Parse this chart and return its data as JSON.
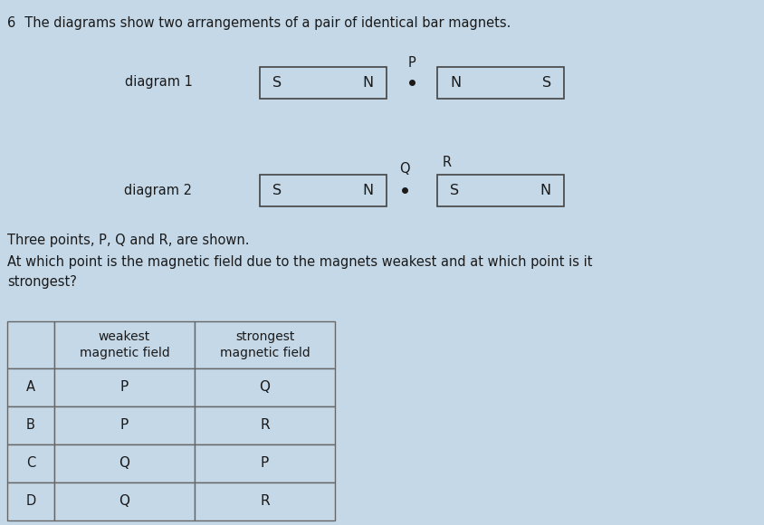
{
  "bg_color": "#c5d8e8",
  "title_num": "6",
  "title_rest": "  The diagrams show two arrangements of a pair of identical bar magnets.",
  "diagram1_label": "diagram 1",
  "diagram2_label": "diagram 2",
  "three_points_text": "Three points, P, Q and R, are shown.",
  "question_text": "At which point is the magnetic field due to the magnets weakest and at which point is it\nstrongest?",
  "magnet_border_color": "#444444",
  "magnet_fill_color": "#c5d8e8",
  "text_color": "#1a1a1a",
  "table_border_color": "#666666",
  "table_header": [
    "",
    "weakest\nmagnetic field",
    "strongest\nmagnetic field"
  ],
  "table_rows": [
    [
      "A",
      "P",
      "Q"
    ],
    [
      "B",
      "P",
      "R"
    ],
    [
      "C",
      "Q",
      "P"
    ],
    [
      "D",
      "Q",
      "R"
    ]
  ],
  "font_size_title": 10.5,
  "font_size_diag_label": 10.5,
  "font_size_magnet": 11.5,
  "font_size_body": 10.5,
  "font_size_table_hdr": 10,
  "font_size_table_cell": 11
}
